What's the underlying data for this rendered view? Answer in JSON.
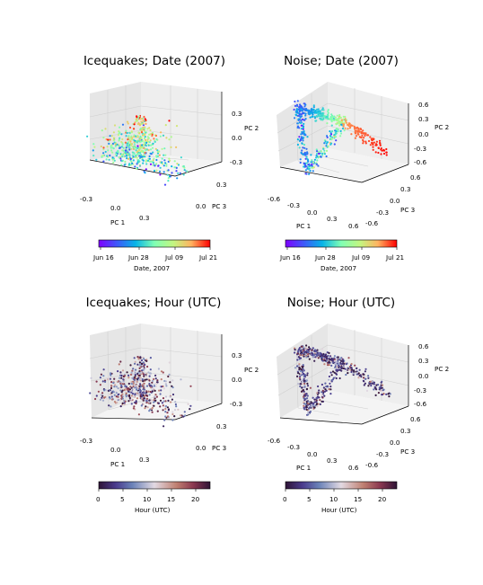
{
  "colors": {
    "pane_left": "#e6e6e6",
    "pane_right": "#eeeeee",
    "pane_floor": "#f4f4f4",
    "grid": "#d0d0d0",
    "edge": "#000000"
  },
  "chart_data": [
    {
      "type": "scatter3d",
      "title": "Icequakes; Date (2007)",
      "xlabel": "PC 1",
      "ylabel": "PC 3",
      "zlabel": "PC 2",
      "xticks": [
        "-0.3",
        "0.0",
        "0.3"
      ],
      "yticks": [
        "0.0",
        "0.3"
      ],
      "zticks": [
        "-0.3",
        "0.0",
        "0.3"
      ],
      "xlim": [
        -0.3,
        0.4
      ],
      "ylim": [
        -0.2,
        0.4
      ],
      "zlim": [
        -0.3,
        0.4
      ],
      "colormap": "rainbow",
      "colorbar_label": "Date, 2007",
      "colorbar_ticks": [
        "Jun 16",
        "Jun 28",
        "Jul 09",
        "Jul 21"
      ],
      "grid": true
    },
    {
      "type": "scatter3d",
      "title": "Noise; Date (2007)",
      "xlabel": "PC 1",
      "ylabel": "PC 3",
      "zlabel": "PC 2",
      "xticks": [
        "-0.6",
        "-0.3",
        "0.0",
        "0.3",
        "0.6"
      ],
      "yticks": [
        "-0.6",
        "-0.3",
        "0.0",
        "0.3",
        "0.6"
      ],
      "zticks": [
        "-0.6",
        "-0.3",
        "0.0",
        "0.3",
        "0.6"
      ],
      "xlim": [
        -0.6,
        0.6
      ],
      "ylim": [
        -0.6,
        0.6
      ],
      "zlim": [
        -0.6,
        0.6
      ],
      "colormap": "rainbow",
      "colorbar_label": "Date, 2007",
      "colorbar_ticks": [
        "Jun 16",
        "Jun 28",
        "Jul 09",
        "Jul 21"
      ],
      "grid": true
    },
    {
      "type": "scatter3d",
      "title": "Icequakes; Hour (UTC)",
      "xlabel": "PC 1",
      "ylabel": "PC 3",
      "zlabel": "PC 2",
      "xticks": [
        "-0.3",
        "0.0",
        "0.3"
      ],
      "yticks": [
        "0.0",
        "0.3"
      ],
      "zticks": [
        "-0.3",
        "0.0",
        "0.3"
      ],
      "xlim": [
        -0.3,
        0.4
      ],
      "ylim": [
        -0.2,
        0.4
      ],
      "zlim": [
        -0.3,
        0.4
      ],
      "colormap": "twilight_shifted",
      "colorbar_label": "Hour (UTC)",
      "colorbar_ticks": [
        "0",
        "5",
        "10",
        "15",
        "20"
      ],
      "grid": true
    },
    {
      "type": "scatter3d",
      "title": "Noise; Hour (UTC)",
      "xlabel": "PC 1",
      "ylabel": "PC 3",
      "zlabel": "PC 2",
      "xticks": [
        "-0.6",
        "-0.3",
        "0.0",
        "0.3",
        "0.6"
      ],
      "yticks": [
        "-0.6",
        "-0.3",
        "0.0",
        "0.3",
        "0.6"
      ],
      "zticks": [
        "-0.6",
        "-0.3",
        "0.0",
        "0.3",
        "0.6"
      ],
      "xlim": [
        -0.6,
        0.6
      ],
      "ylim": [
        -0.6,
        0.6
      ],
      "zlim": [
        -0.6,
        0.6
      ],
      "colormap": "twilight_shifted",
      "colorbar_label": "Hour (UTC)",
      "colorbar_ticks": [
        "0",
        "5",
        "10",
        "15",
        "20"
      ],
      "grid": true
    }
  ]
}
